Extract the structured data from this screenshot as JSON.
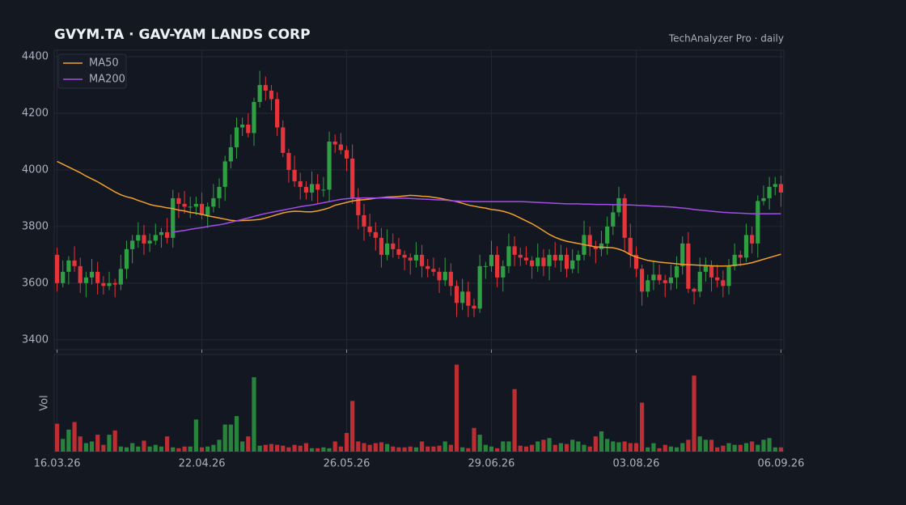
{
  "chart_data": {
    "type": "candlestick",
    "title": "GVYM.TA  ·  GAV-YAM LANDS CORP",
    "subtitle": "TechAnalyzer Pro · daily",
    "volume_label": "Vol",
    "categories": [
      "16.03.26",
      null,
      null,
      null,
      null,
      null,
      null,
      null,
      null,
      null,
      null,
      null,
      null,
      null,
      null,
      null,
      null,
      null,
      null,
      null,
      null,
      null,
      null,
      null,
      null,
      "22.04.26",
      null,
      null,
      null,
      null,
      null,
      null,
      null,
      null,
      null,
      null,
      null,
      null,
      null,
      null,
      null,
      null,
      null,
      null,
      null,
      null,
      null,
      null,
      null,
      null,
      "26.05.26",
      null,
      null,
      null,
      null,
      null,
      null,
      null,
      null,
      null,
      null,
      null,
      null,
      null,
      null,
      null,
      null,
      null,
      null,
      null,
      null,
      null,
      null,
      null,
      null,
      "29.06.26",
      null,
      null,
      null,
      null,
      null,
      null,
      null,
      null,
      null,
      null,
      null,
      null,
      null,
      null,
      null,
      null,
      null,
      null,
      null,
      null,
      null,
      null,
      null,
      null,
      "03.08.26",
      null,
      null,
      null,
      null,
      null,
      null,
      null,
      null,
      null,
      null,
      null,
      null,
      null,
      null,
      null,
      null,
      null,
      null,
      null,
      null,
      null,
      null,
      null,
      null,
      "06.09.26"
    ],
    "open": [
      3700,
      3600,
      3640,
      3680,
      3660,
      3600,
      3620,
      3640,
      3600,
      3590,
      3600,
      3595,
      3650,
      3720,
      3750,
      3770,
      3740,
      3750,
      3770,
      3780,
      3760,
      3900,
      3880,
      3870,
      3870,
      3880,
      3840,
      3870,
      3900,
      3940,
      4030,
      4080,
      4150,
      4160,
      4130,
      4240,
      4300,
      4280,
      4250,
      4150,
      4060,
      4000,
      3960,
      3940,
      3920,
      3950,
      3930,
      3930,
      4100,
      4090,
      4070,
      4040,
      3900,
      3840,
      3800,
      3780,
      3760,
      3700,
      3740,
      3720,
      3700,
      3690,
      3680,
      3700,
      3660,
      3650,
      3640,
      3610,
      3640,
      3590,
      3530,
      3570,
      3520,
      3510,
      3660,
      3660,
      3700,
      3620,
      3660,
      3730,
      3700,
      3690,
      3680,
      3660,
      3690,
      3660,
      3700,
      3680,
      3700,
      3650,
      3680,
      3700,
      3770,
      3730,
      3720,
      3740,
      3800,
      3850,
      3900,
      3760,
      3700,
      3650,
      3570,
      3610,
      3630,
      3610,
      3600,
      3620,
      3660,
      3740,
      3580,
      3570,
      3640,
      3660,
      3620,
      3610,
      3590,
      3660,
      3700,
      3690,
      3770,
      3740,
      3890,
      3900,
      3940,
      3950
    ],
    "high": [
      3725,
      3680,
      3695,
      3730,
      3690,
      3640,
      3685,
      3675,
      3625,
      3640,
      3615,
      3700,
      3750,
      3770,
      3815,
      3805,
      3775,
      3810,
      3795,
      3830,
      3930,
      3920,
      3925,
      3905,
      3905,
      3920,
      3885,
      3950,
      3970,
      4050,
      4125,
      4185,
      4185,
      4200,
      4255,
      4350,
      4330,
      4300,
      4275,
      4175,
      4075,
      4050,
      3990,
      3960,
      3995,
      3985,
      3975,
      4135,
      4125,
      4130,
      4085,
      4090,
      3935,
      3880,
      3845,
      3815,
      3795,
      3790,
      3775,
      3760,
      3715,
      3705,
      3745,
      3735,
      3685,
      3690,
      3655,
      3690,
      3670,
      3610,
      3615,
      3605,
      3545,
      3700,
      3675,
      3750,
      3730,
      3680,
      3775,
      3765,
      3725,
      3730,
      3695,
      3740,
      3720,
      3720,
      3745,
      3735,
      3725,
      3720,
      3715,
      3820,
      3800,
      3750,
      3785,
      3835,
      3875,
      3940,
      3915,
      3810,
      3730,
      3665,
      3630,
      3680,
      3665,
      3630,
      3665,
      3695,
      3765,
      3780,
      3585,
      3690,
      3690,
      3680,
      3665,
      3645,
      3685,
      3740,
      3715,
      3810,
      3800,
      3910,
      3945,
      3975,
      3975,
      3980
    ],
    "low": [
      3570,
      3585,
      3595,
      3640,
      3565,
      3550,
      3595,
      3560,
      3560,
      3575,
      3550,
      3575,
      3615,
      3670,
      3725,
      3700,
      3710,
      3735,
      3725,
      3740,
      3725,
      3830,
      3845,
      3830,
      3840,
      3825,
      3795,
      3850,
      3865,
      3890,
      4005,
      4040,
      4120,
      4115,
      4085,
      4220,
      4245,
      4210,
      4120,
      4045,
      3955,
      3940,
      3895,
      3895,
      3890,
      3880,
      3905,
      3890,
      4060,
      4055,
      3995,
      3880,
      3790,
      3750,
      3765,
      3715,
      3655,
      3680,
      3690,
      3685,
      3645,
      3630,
      3655,
      3620,
      3620,
      3625,
      3565,
      3590,
      3555,
      3480,
      3505,
      3480,
      3480,
      3495,
      3615,
      3640,
      3585,
      3570,
      3635,
      3660,
      3660,
      3665,
      3615,
      3640,
      3625,
      3610,
      3655,
      3640,
      3620,
      3635,
      3635,
      3680,
      3695,
      3670,
      3695,
      3700,
      3770,
      3835,
      3715,
      3655,
      3620,
      3520,
      3550,
      3575,
      3595,
      3550,
      3575,
      3580,
      3630,
      3565,
      3525,
      3550,
      3605,
      3570,
      3585,
      3550,
      3560,
      3645,
      3660,
      3675,
      3705,
      3690,
      3875,
      3860,
      3910,
      3870
    ],
    "close": [
      3600,
      3640,
      3680,
      3660,
      3600,
      3620,
      3640,
      3600,
      3590,
      3600,
      3595,
      3650,
      3720,
      3750,
      3770,
      3740,
      3750,
      3770,
      3780,
      3760,
      3900,
      3880,
      3870,
      3870,
      3880,
      3840,
      3870,
      3900,
      3940,
      4030,
      4080,
      4150,
      4160,
      4130,
      4240,
      4300,
      4280,
      4250,
      4150,
      4060,
      4000,
      3960,
      3940,
      3920,
      3950,
      3930,
      3930,
      4100,
      4090,
      4070,
      4040,
      3900,
      3840,
      3800,
      3780,
      3760,
      3700,
      3740,
      3720,
      3700,
      3690,
      3680,
      3700,
      3660,
      3650,
      3640,
      3610,
      3640,
      3590,
      3530,
      3570,
      3520,
      3510,
      3660,
      3660,
      3700,
      3620,
      3660,
      3730,
      3700,
      3690,
      3680,
      3660,
      3690,
      3660,
      3700,
      3680,
      3700,
      3650,
      3680,
      3700,
      3770,
      3730,
      3720,
      3740,
      3800,
      3850,
      3900,
      3760,
      3700,
      3650,
      3570,
      3610,
      3630,
      3610,
      3600,
      3620,
      3660,
      3740,
      3580,
      3570,
      3640,
      3660,
      3620,
      3610,
      3590,
      3660,
      3700,
      3690,
      3770,
      3740,
      3890,
      3900,
      3940,
      3950,
      3920
    ],
    "volume": [
      33,
      15,
      26,
      35,
      18,
      10,
      12,
      20,
      8,
      20,
      25,
      6,
      5,
      10,
      6,
      13,
      6,
      8,
      6,
      18,
      5,
      4,
      6,
      6,
      38,
      5,
      6,
      8,
      14,
      32,
      32,
      42,
      12,
      18,
      88,
      7,
      8,
      9,
      8,
      7,
      5,
      8,
      7,
      10,
      4,
      4,
      5,
      4,
      12,
      6,
      22,
      60,
      12,
      10,
      8,
      10,
      11,
      9,
      6,
      5,
      5,
      6,
      5,
      12,
      6,
      6,
      7,
      12,
      8,
      103,
      5,
      4,
      28,
      20,
      8,
      6,
      4,
      12,
      12,
      74,
      7,
      6,
      8,
      12,
      14,
      16,
      8,
      10,
      9,
      14,
      12,
      8,
      6,
      18,
      24,
      15,
      12,
      11,
      12,
      10,
      10,
      58,
      5,
      10,
      4,
      8,
      6,
      5,
      10,
      14,
      90,
      18,
      14,
      14,
      5,
      7,
      10,
      8,
      8,
      10,
      12,
      8,
      14,
      16,
      5,
      5
    ],
    "volume_ylim": [
      0,
      115
    ],
    "up_color": "#2ea043",
    "down_color": "#e5343a",
    "series": [
      {
        "name": "MA50",
        "color": "#f0a12c",
        "values": [
          4030,
          4020,
          4010,
          4000,
          3990,
          3978,
          3968,
          3958,
          3946,
          3934,
          3922,
          3912,
          3905,
          3900,
          3892,
          3885,
          3878,
          3873,
          3870,
          3866,
          3863,
          3858,
          3855,
          3850,
          3847,
          3843,
          3838,
          3834,
          3830,
          3826,
          3822,
          3820,
          3821,
          3822,
          3823,
          3825,
          3830,
          3836,
          3842,
          3848,
          3852,
          3854,
          3853,
          3852,
          3852,
          3855,
          3860,
          3866,
          3875,
          3880,
          3885,
          3890,
          3893,
          3895,
          3897,
          3900,
          3902,
          3904,
          3905,
          3906,
          3908,
          3910,
          3909,
          3907,
          3906,
          3903,
          3900,
          3896,
          3892,
          3888,
          3882,
          3876,
          3872,
          3868,
          3865,
          3860,
          3858,
          3854,
          3848,
          3840,
          3830,
          3820,
          3810,
          3798,
          3785,
          3772,
          3762,
          3754,
          3748,
          3744,
          3740,
          3736,
          3732,
          3728,
          3727,
          3726,
          3725,
          3720,
          3712,
          3700,
          3692,
          3686,
          3680,
          3677,
          3674,
          3672,
          3670,
          3668,
          3666,
          3665,
          3664,
          3663,
          3662,
          3661,
          3660,
          3660,
          3661,
          3663,
          3665,
          3668,
          3672,
          3678,
          3684,
          3690,
          3696,
          3702
        ]
      },
      {
        "name": "MA200",
        "color": "#a34de8",
        "values": [
          null,
          null,
          null,
          null,
          null,
          null,
          null,
          null,
          null,
          null,
          null,
          null,
          null,
          null,
          null,
          null,
          null,
          null,
          null,
          null,
          3780,
          3783,
          3786,
          3790,
          3793,
          3796,
          3800,
          3803,
          3806,
          3810,
          3815,
          3820,
          3825,
          3830,
          3836,
          3841,
          3846,
          3850,
          3854,
          3858,
          3862,
          3866,
          3870,
          3873,
          3876,
          3880,
          3884,
          3888,
          3892,
          3896,
          3898,
          3900,
          3900,
          3901,
          3901,
          3901,
          3901,
          3901,
          3900,
          3900,
          3900,
          3899,
          3898,
          3897,
          3896,
          3895,
          3894,
          3893,
          3891,
          3890,
          3889,
          3889,
          3888,
          3888,
          3888,
          3888,
          3888,
          3888,
          3888,
          3888,
          3888,
          3887,
          3886,
          3885,
          3884,
          3883,
          3882,
          3881,
          3880,
          3880,
          3880,
          3879,
          3879,
          3878,
          3878,
          3878,
          3877,
          3877,
          3876,
          3876,
          3875,
          3874,
          3873,
          3872,
          3871,
          3870,
          3869,
          3867,
          3865,
          3863,
          3860,
          3858,
          3856,
          3854,
          3852,
          3850,
          3849,
          3848,
          3847,
          3846,
          3845,
          3845,
          3845,
          3845,
          3845,
          3845
        ]
      }
    ],
    "ylim": [
      3365,
      4423
    ],
    "yticks": [
      3400,
      3600,
      3800,
      4000,
      4200,
      4400
    ],
    "grid": true,
    "legend": "upper left"
  }
}
